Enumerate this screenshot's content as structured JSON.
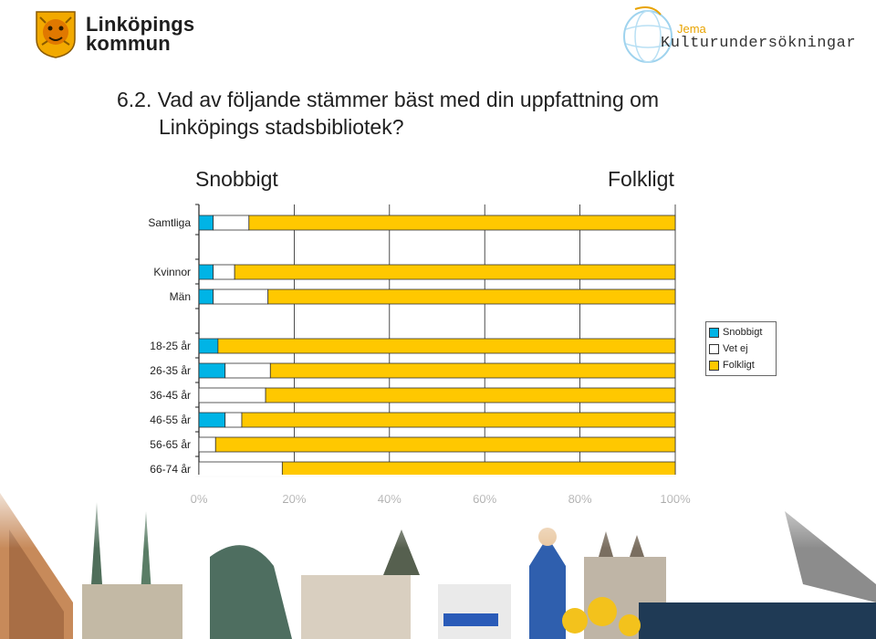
{
  "header": {
    "brand_line1": "Linköpings",
    "brand_line2": "kommun",
    "partner_small": "Jema",
    "partner_name": "Kulturundersökningar"
  },
  "question": {
    "line1": "6.2. Vad av följande stämmer bäst med din uppfattning om",
    "line2": "Linköpings stadsbibliotek?"
  },
  "poles": {
    "left": "Snobbigt",
    "right": "Folkligt"
  },
  "colors": {
    "snobbigt": "#00b4e6",
    "vet_ej": "#ffffff",
    "folkligt": "#ffc800"
  },
  "chart_data": {
    "type": "bar",
    "orientation": "horizontal",
    "stacked": true,
    "percent": true,
    "categories": [
      "Samtliga",
      "Kvinnor",
      "Män",
      "18-25 år",
      "26-35 år",
      "36-45 år",
      "46-55 år",
      "56-65 år",
      "66-74 år"
    ],
    "group_after_index": [
      0,
      2
    ],
    "series": [
      {
        "name": "Snobbigt",
        "values": [
          3,
          3,
          3,
          4,
          5.5,
          0,
          5.5,
          0,
          0
        ]
      },
      {
        "name": "Vet ej",
        "values": [
          7.5,
          4.5,
          11.5,
          0,
          9.5,
          14,
          3.5,
          3.5,
          17.5
        ]
      },
      {
        "name": "Folkligt",
        "values": [
          89.5,
          92.5,
          85.5,
          96,
          85,
          86,
          91,
          96.5,
          82.5
        ]
      }
    ],
    "xlim": [
      0,
      100
    ],
    "xticks": [
      "0%",
      "20%",
      "40%",
      "60%",
      "80%",
      "100%"
    ],
    "legend": [
      "Snobbigt",
      "Vet ej",
      "Folkligt"
    ],
    "legend_position": "right",
    "grid": true
  }
}
